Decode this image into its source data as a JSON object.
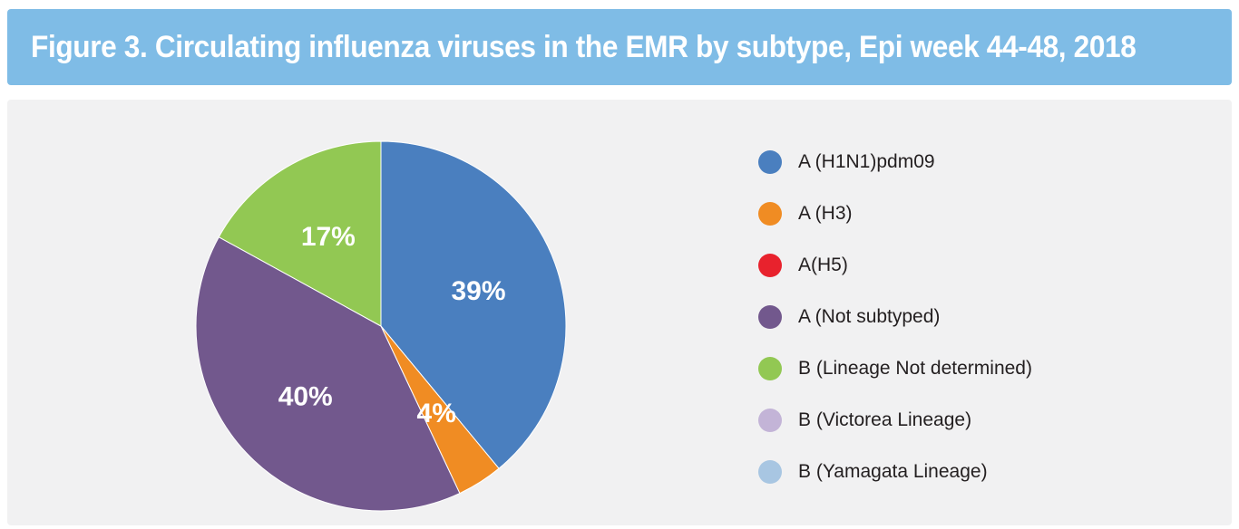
{
  "title": "Figure 3. Circulating influenza viruses in the EMR by subtype, Epi week 44-48, 2018",
  "chart_data": {
    "type": "pie",
    "title": "Figure 3. Circulating influenza viruses in the EMR by subtype, Epi week 44-48, 2018",
    "legend_position": "right",
    "slices": [
      {
        "label": "A (H1N1)pdm09",
        "value": 39,
        "display": "39%",
        "color": "#4a7fbf"
      },
      {
        "label": "A (H3)",
        "value": 4,
        "display": "4%",
        "color": "#f08c23"
      },
      {
        "label": "A(H5)",
        "value": 0,
        "display": "",
        "color": "#e8222d"
      },
      {
        "label": "A (Not subtyped)",
        "value": 40,
        "display": "40%",
        "color": "#72588d"
      },
      {
        "label": "B (Lineage Not determined)",
        "value": 17,
        "display": "17%",
        "color": "#92c853"
      },
      {
        "label": "B (Victorea Lineage)",
        "value": 0,
        "display": "",
        "color": "#c3b4d7"
      },
      {
        "label": "B (Yamagata Lineage)",
        "value": 0,
        "display": "",
        "color": "#a8c6e2"
      }
    ]
  }
}
